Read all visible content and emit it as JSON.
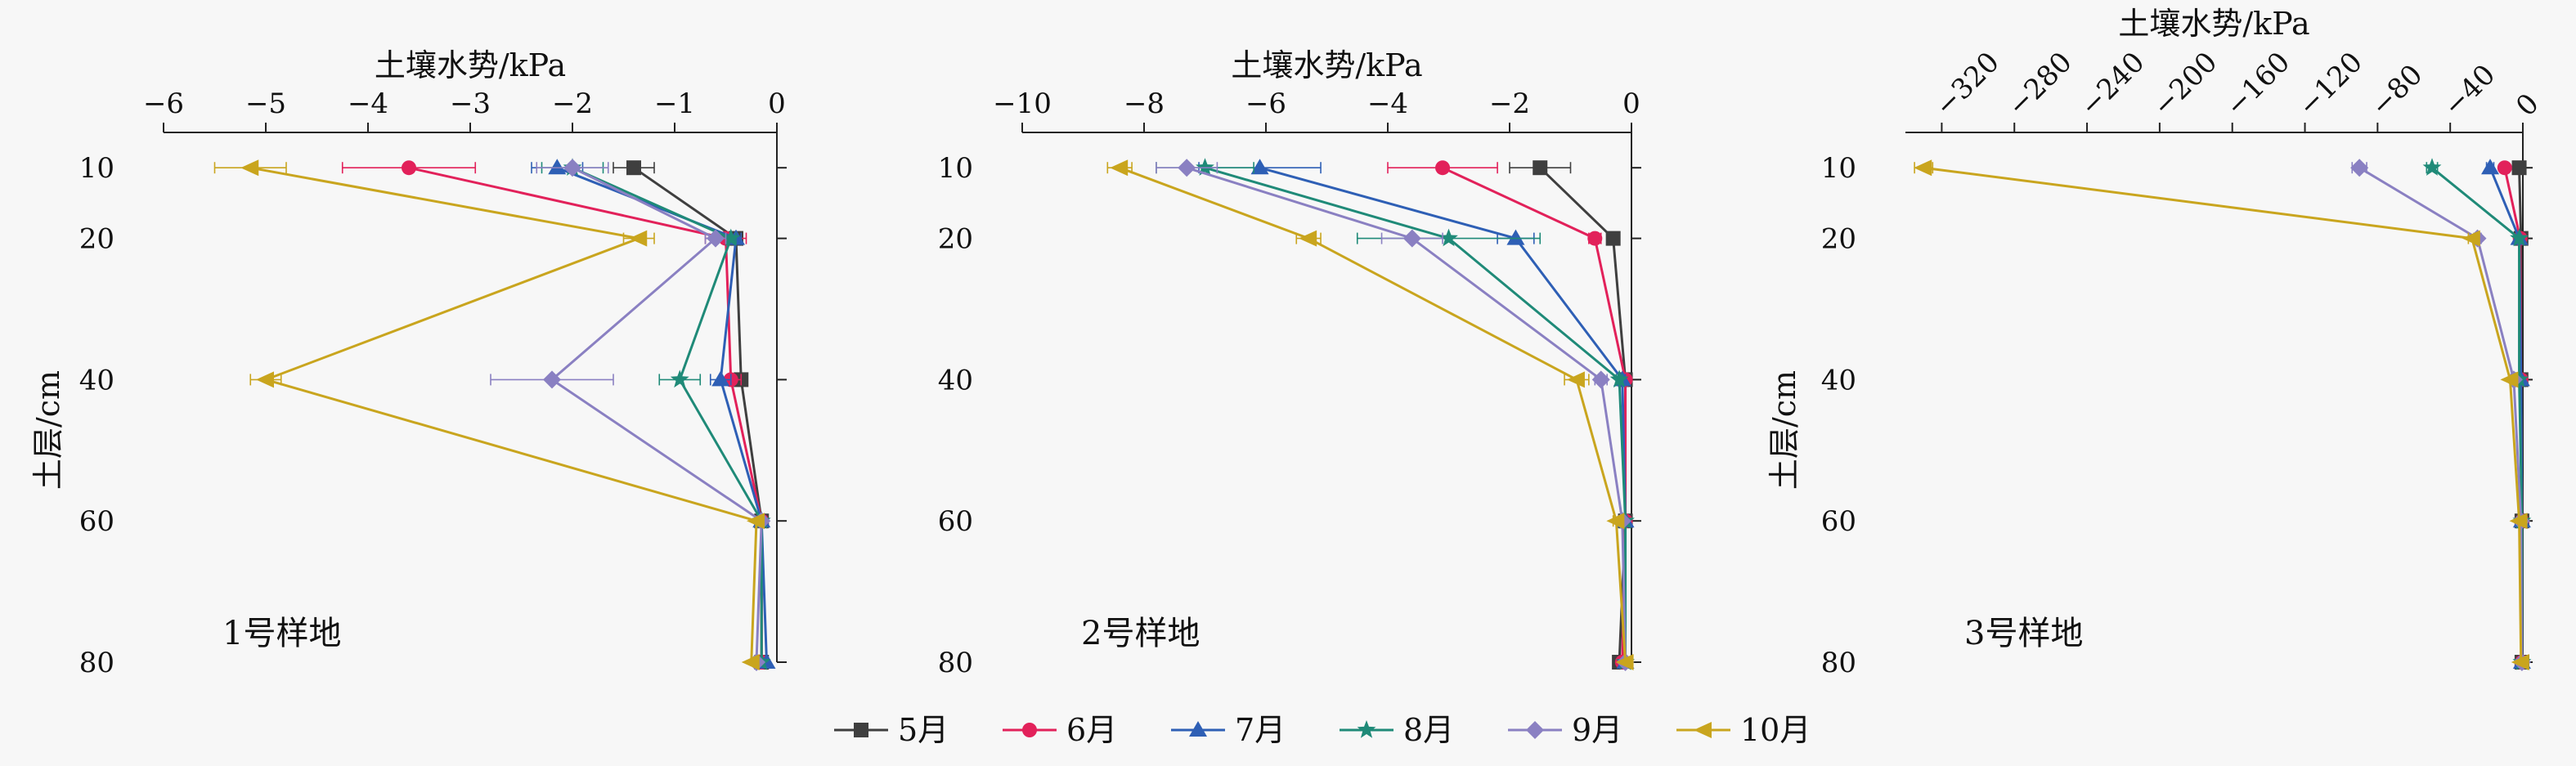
{
  "chart_data": [
    {
      "type": "line",
      "title": "",
      "xlabel": "土壤水势/kPa",
      "ylabel": "土层/cm",
      "annotation": "1号样地",
      "xlim": [
        -6,
        0
      ],
      "xticks": [
        -6,
        -5,
        -4,
        -3,
        -2,
        -1,
        0
      ],
      "x_tick_labels": [
        "−6",
        "−5",
        "−4",
        "−3",
        "−2",
        "−1",
        "0"
      ],
      "depths": [
        10,
        20,
        40,
        60,
        80
      ],
      "y_tick_labels": [
        "10",
        "20",
        "40",
        "60",
        "80"
      ],
      "series": [
        {
          "name": "5月",
          "values": [
            -1.4,
            -0.4,
            -0.35,
            -0.15,
            -0.15
          ],
          "errors": [
            0.2,
            0.05,
            0.05,
            0.02,
            0.02
          ]
        },
        {
          "name": "6月",
          "values": [
            -3.6,
            -0.5,
            -0.45,
            -0.15,
            -0.15
          ],
          "errors": [
            0.65,
            0.2,
            0.1,
            0.02,
            0.02
          ]
        },
        {
          "name": "7月",
          "values": [
            -2.15,
            -0.4,
            -0.55,
            -0.15,
            -0.1
          ],
          "errors": [
            0.25,
            0.05,
            0.1,
            0.02,
            0.02
          ]
        },
        {
          "name": "8月",
          "values": [
            -2.0,
            -0.45,
            -0.95,
            -0.15,
            -0.15
          ],
          "errors": [
            0.3,
            0.05,
            0.2,
            0.02,
            0.02
          ]
        },
        {
          "name": "9月",
          "values": [
            -2.0,
            -0.6,
            -2.2,
            -0.15,
            -0.2
          ],
          "errors": [
            0.35,
            0.1,
            0.6,
            0.02,
            0.02
          ]
        },
        {
          "name": "10月",
          "values": [
            -5.15,
            -1.35,
            -5.0,
            -0.2,
            -0.25
          ],
          "errors": [
            0.35,
            0.15,
            0.15,
            0.02,
            0.02
          ]
        }
      ]
    },
    {
      "type": "line",
      "title": "",
      "xlabel": "土壤水势/kPa",
      "ylabel": "",
      "annotation": "2号样地",
      "xlim": [
        -10,
        0
      ],
      "xticks": [
        -10,
        -8,
        -6,
        -4,
        -2,
        0
      ],
      "x_tick_labels": [
        "−10",
        "−8",
        "−6",
        "−4",
        "−2",
        "0"
      ],
      "depths": [
        10,
        20,
        40,
        60,
        80
      ],
      "y_tick_labels": [
        "10",
        "20",
        "40",
        "60",
        "80"
      ],
      "series": [
        {
          "name": "5月",
          "values": [
            -1.5,
            -0.3,
            -0.1,
            -0.1,
            -0.2
          ],
          "errors": [
            0.5,
            0.05,
            0.05,
            0.02,
            0.02
          ]
        },
        {
          "name": "6月",
          "values": [
            -3.1,
            -0.6,
            -0.1,
            -0.1,
            -0.15
          ],
          "errors": [
            0.9,
            0.1,
            0.05,
            0.02,
            0.02
          ]
        },
        {
          "name": "7月",
          "values": [
            -6.1,
            -1.9,
            -0.15,
            -0.1,
            -0.1
          ],
          "errors": [
            1.0,
            0.3,
            0.05,
            0.02,
            0.02
          ]
        },
        {
          "name": "8月",
          "values": [
            -7.0,
            -3.0,
            -0.2,
            -0.1,
            -0.1
          ],
          "errors": [
            0.8,
            1.5,
            0.05,
            0.02,
            0.02
          ]
        },
        {
          "name": "9月",
          "values": [
            -7.3,
            -3.6,
            -0.5,
            -0.15,
            -0.1
          ],
          "errors": [
            0.5,
            0.5,
            0.1,
            0.02,
            0.02
          ]
        },
        {
          "name": "10月",
          "values": [
            -8.4,
            -5.3,
            -0.9,
            -0.25,
            -0.1
          ],
          "errors": [
            0.2,
            0.2,
            0.2,
            0.05,
            0.02
          ]
        }
      ]
    },
    {
      "type": "line",
      "title": "",
      "xlabel": "土壤水势/kPa",
      "ylabel": "土层/cm",
      "annotation": "3号样地",
      "xlim": [
        -340,
        0
      ],
      "xticks": [
        -320,
        -280,
        -240,
        -200,
        -160,
        -120,
        -80,
        -40,
        0
      ],
      "x_tick_labels": [
        "−320",
        "−280",
        "−240",
        "−200",
        "−160",
        "−120",
        "−80",
        "−40",
        "0"
      ],
      "depths": [
        10,
        20,
        40,
        60,
        80
      ],
      "y_tick_labels": [
        "10",
        "20",
        "40",
        "60",
        "80"
      ],
      "series": [
        {
          "name": "5月",
          "values": [
            -2,
            -1,
            -1,
            -0.5,
            -0.5
          ],
          "errors": [
            0.5,
            0.5,
            0.5,
            0.2,
            0.2
          ]
        },
        {
          "name": "6月",
          "values": [
            -10,
            -1.5,
            -1,
            -0.5,
            -0.5
          ],
          "errors": [
            1,
            0.5,
            0.5,
            0.2,
            0.2
          ]
        },
        {
          "name": "7月",
          "values": [
            -18,
            -2,
            -1,
            -0.5,
            -0.5
          ],
          "errors": [
            2,
            0.5,
            0.5,
            0.2,
            0.2
          ]
        },
        {
          "name": "8月",
          "values": [
            -50,
            -2,
            -2,
            -0.5,
            -0.5
          ],
          "errors": [
            3,
            0.5,
            0.5,
            0.2,
            0.2
          ]
        },
        {
          "name": "9月",
          "values": [
            -90,
            -25,
            -5,
            -1,
            -0.5
          ],
          "errors": [
            4,
            2,
            1,
            0.3,
            0.2
          ]
        },
        {
          "name": "10月",
          "values": [
            -330,
            -28,
            -7,
            -2,
            -1
          ],
          "errors": [
            5,
            2,
            1,
            0.3,
            0.2
          ]
        }
      ]
    }
  ],
  "legend": {
    "placement": "bottom",
    "items": [
      {
        "name": "5月",
        "color": "#3f3f3f",
        "marker": "square"
      },
      {
        "name": "6月",
        "color": "#e2215a",
        "marker": "circle"
      },
      {
        "name": "7月",
        "color": "#2e5fb5",
        "marker": "triangle-up"
      },
      {
        "name": "8月",
        "color": "#1f8a78",
        "marker": "star"
      },
      {
        "name": "9月",
        "color": "#8a80c2",
        "marker": "diamond"
      },
      {
        "name": "10月",
        "color": "#c9a51e",
        "marker": "triangle-left"
      }
    ]
  }
}
